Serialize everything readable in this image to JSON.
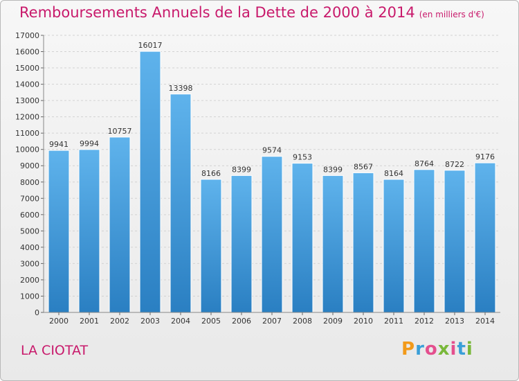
{
  "title": "Remboursements Annuels de la Dette de 2000 à 2014",
  "subtitle": "(en milliers d'€)",
  "city": "LA CIOTAT",
  "logo": {
    "text": "Proxiti"
  },
  "colors": {
    "bar_light": "#5fb3ec",
    "bar_dark": "#2a7fc2",
    "title": "#c8196b"
  },
  "chart_data": {
    "type": "bar",
    "categories": [
      "2000",
      "2001",
      "2002",
      "2003",
      "2004",
      "2005",
      "2006",
      "2007",
      "2008",
      "2009",
      "2010",
      "2011",
      "2012",
      "2013",
      "2014"
    ],
    "values": [
      9941,
      9994,
      10757,
      16017,
      13398,
      8166,
      8399,
      9574,
      9153,
      8399,
      8567,
      8164,
      8764,
      8722,
      9176
    ],
    "yticks": [
      0,
      1000,
      2000,
      3000,
      4000,
      5000,
      6000,
      7000,
      8000,
      9000,
      10000,
      11000,
      12000,
      13000,
      14000,
      15000,
      16000,
      17000
    ],
    "ylim": [
      0,
      17000
    ],
    "grid": true,
    "title": "Remboursements Annuels de la Dette de 2000 à 2014",
    "subtitle": "(en milliers d'€)"
  }
}
